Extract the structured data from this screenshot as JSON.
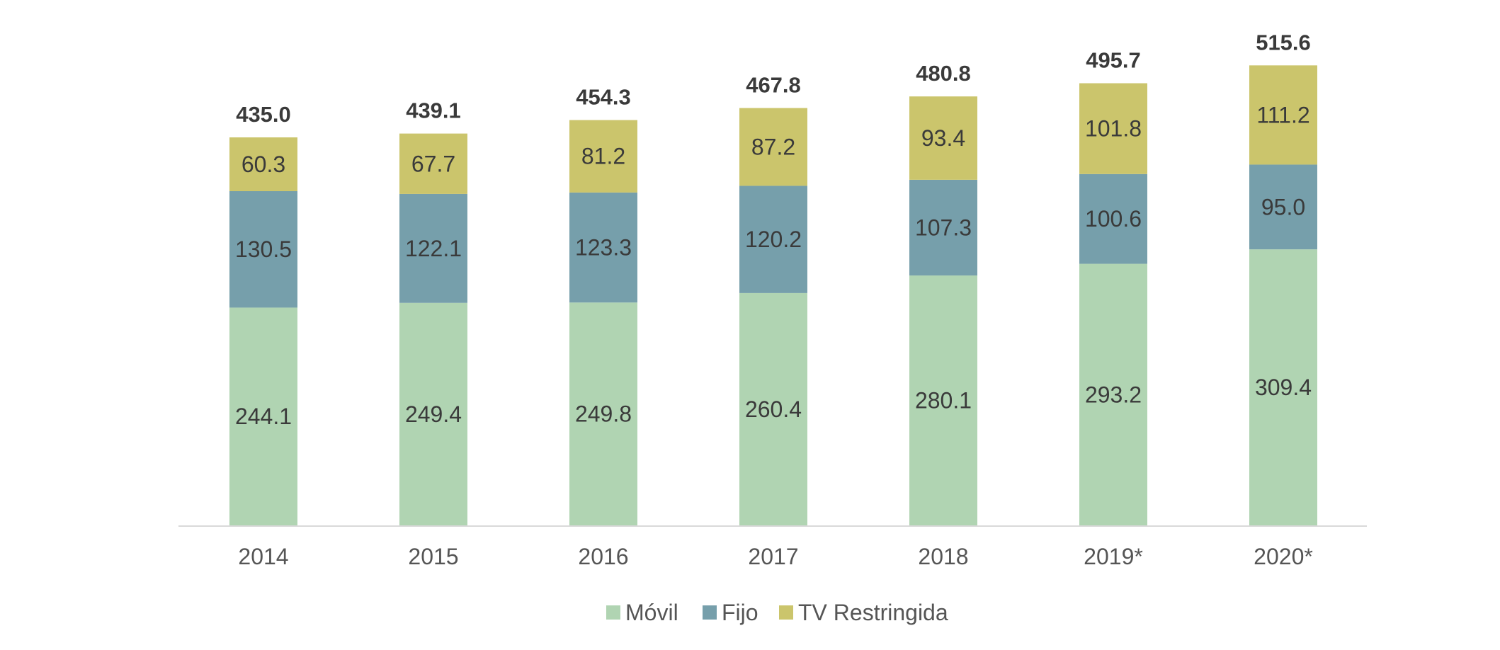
{
  "chart_data": {
    "type": "bar",
    "stacked": true,
    "title": "",
    "xlabel": "",
    "ylabel": "",
    "ylim": [
      0,
      530
    ],
    "grid": false,
    "legend_position": "bottom",
    "categories": [
      "2014",
      "2015",
      "2016",
      "2017",
      "2018",
      "2019*",
      "2020*"
    ],
    "series": [
      {
        "name": "Móvil",
        "color": "#b0d4b2",
        "values": [
          244.1,
          249.4,
          249.8,
          260.4,
          280.1,
          293.2,
          309.4
        ]
      },
      {
        "name": "Fijo",
        "color": "#769fab",
        "values": [
          130.5,
          122.1,
          123.3,
          120.2,
          107.3,
          100.6,
          95.0
        ]
      },
      {
        "name": "TV Restringida",
        "color": "#cbc56c",
        "values": [
          60.3,
          67.7,
          81.2,
          87.2,
          93.4,
          101.8,
          111.2
        ]
      }
    ],
    "totals": [
      "435.0",
      "439.1",
      "454.3",
      "467.8",
      "480.8",
      "495.7",
      "515.6"
    ],
    "value_labels": [
      [
        "244.1",
        "249.4",
        "249.8",
        "260.4",
        "280.1",
        "293.2",
        "309.4"
      ],
      [
        "130.5",
        "122.1",
        "123.3",
        "120.2",
        "107.3",
        "100.6",
        "95.0"
      ],
      [
        "60.3",
        "67.7",
        "81.2",
        "87.2",
        "93.4",
        "101.8",
        "111.2"
      ]
    ]
  }
}
